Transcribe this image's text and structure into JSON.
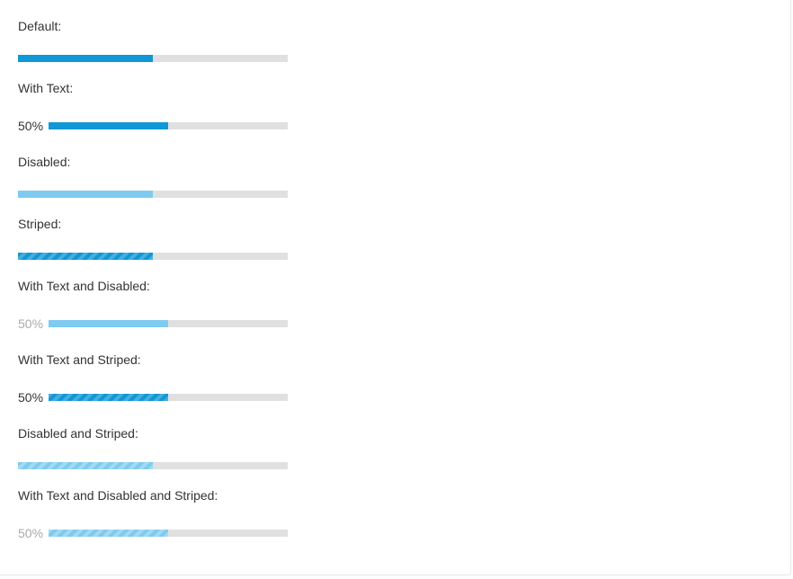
{
  "colors": {
    "fill": "#1097d5",
    "fill_disabled": "#7ecbef",
    "track": "#e0e0e0",
    "text": "#333333",
    "text_disabled": "#aaaaaa"
  },
  "examples": [
    {
      "label": "Default:",
      "value": 0.5,
      "show_text": false,
      "disabled": false,
      "striped": false
    },
    {
      "label": "With Text:",
      "value": 0.5,
      "show_text": true,
      "text": "50%",
      "disabled": false,
      "striped": false
    },
    {
      "label": "Disabled:",
      "value": 0.5,
      "show_text": false,
      "disabled": true,
      "striped": false
    },
    {
      "label": "Striped:",
      "value": 0.5,
      "show_text": false,
      "disabled": false,
      "striped": true
    },
    {
      "label": "With Text and Disabled:",
      "value": 0.5,
      "show_text": true,
      "text": "50%",
      "disabled": true,
      "striped": false
    },
    {
      "label": "With Text and Striped:",
      "value": 0.5,
      "show_text": true,
      "text": "50%",
      "disabled": false,
      "striped": true
    },
    {
      "label": "Disabled and Striped:",
      "value": 0.5,
      "show_text": false,
      "disabled": true,
      "striped": true
    },
    {
      "label": "With Text and Disabled and Striped:",
      "value": 0.5,
      "show_text": true,
      "text": "50%",
      "disabled": true,
      "striped": true
    }
  ]
}
